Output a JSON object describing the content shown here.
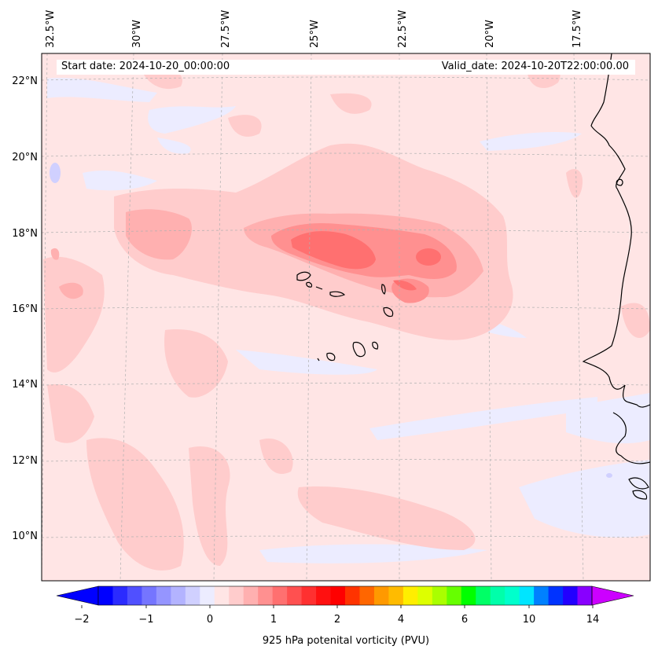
{
  "map": {
    "start_date_text": "Start date: 2024-10-20_00:00:00",
    "valid_date_text": "Valid_date: 2024-10-20T22:00:00.00",
    "longitude_labels": [
      "32.5°W",
      "30°W",
      "27.5°W",
      "25°W",
      "22.5°W",
      "20°W",
      "17.5°W"
    ],
    "latitude_labels": [
      "22°N",
      "20°N",
      "18°N",
      "16°N",
      "14°N",
      "12°N",
      "10°N"
    ],
    "background_color": "#ffe5e5",
    "land_outline_color": "#000000",
    "grid_color": "#b0b0b0"
  },
  "colorbar": {
    "label": "925 hPa potenital vorticity (PVU)",
    "tick_labels": [
      "−2",
      "−1",
      "0",
      "1",
      "2",
      "4",
      "6",
      "10",
      "14"
    ],
    "colors": [
      "#0000ff",
      "#2b2bff",
      "#5050ff",
      "#7575ff",
      "#9595ff",
      "#b3b3ff",
      "#d0d0ff",
      "#ececff",
      "#ffe5e5",
      "#ffcccc",
      "#ffb0b0",
      "#ff9090",
      "#ff7070",
      "#ff5050",
      "#ff3030",
      "#ff1010",
      "#ff0000",
      "#ff3300",
      "#ff6600",
      "#ff9900",
      "#ffbb00",
      "#ffee00",
      "#ddff00",
      "#aaff00",
      "#66ff00",
      "#00ff00",
      "#00ff66",
      "#00ffaa",
      "#00ffcc",
      "#00e5ff",
      "#0080ff",
      "#0033ff",
      "#2200ff",
      "#8800ff"
    ],
    "under_color": "#0000ff",
    "over_color": "#cc00ff"
  }
}
